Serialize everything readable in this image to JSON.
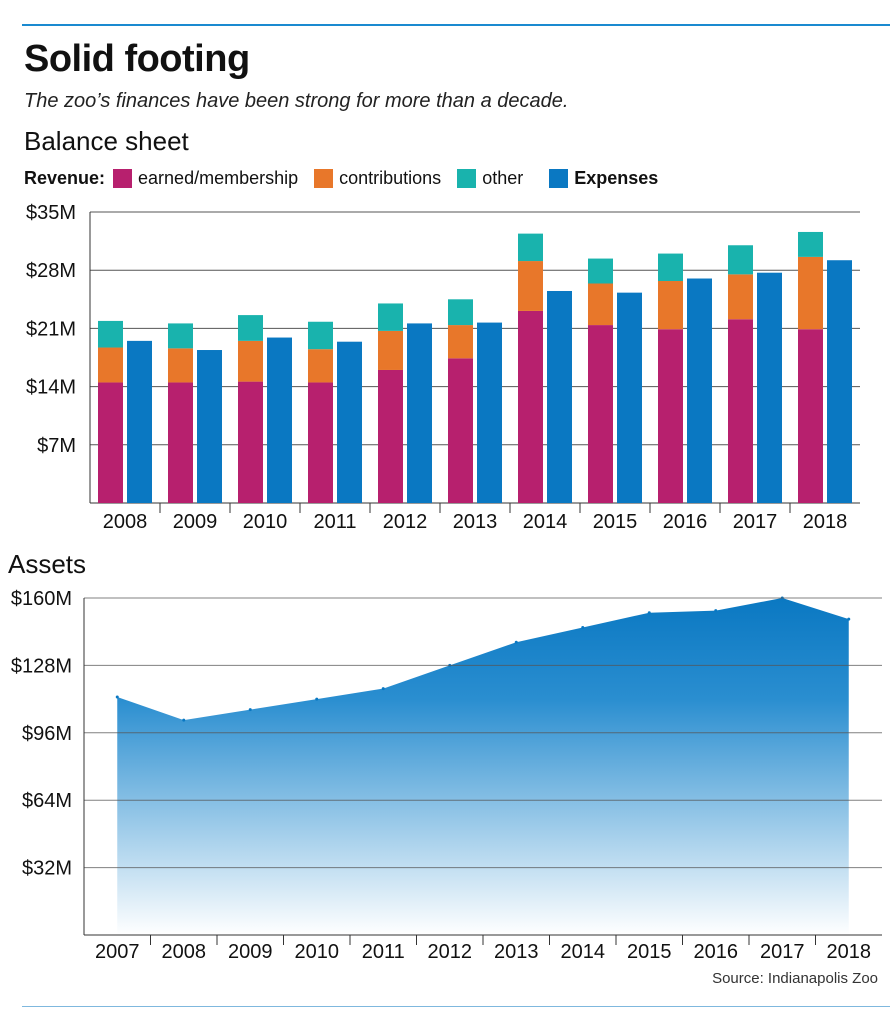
{
  "title": "Solid footing",
  "subtitle": "The zoo’s finances have been strong for more than a decade.",
  "source": "Source: Indianapolis Zoo",
  "colors": {
    "earned": "#b7206e",
    "contributions": "#e8772a",
    "other": "#19b3ad",
    "expenses": "#0a78c2",
    "rule": "#1a8ad0"
  },
  "chart_data": [
    {
      "type": "bar",
      "title": "Balance sheet",
      "legend_title": "Revenue:",
      "legend_placement": "top",
      "grid": true,
      "ylim": [
        0,
        35
      ],
      "y_ticks": [
        7,
        14,
        21,
        28,
        35
      ],
      "y_tick_labels": [
        "$7M",
        "$14M",
        "$21M",
        "$28M",
        "$35M"
      ],
      "categories": [
        "2008",
        "2009",
        "2010",
        "2011",
        "2012",
        "2013",
        "2014",
        "2015",
        "2016",
        "2017",
        "2018"
      ],
      "series": [
        {
          "name": "earned/membership",
          "stack": "revenue",
          "values": [
            14.5,
            14.5,
            14.6,
            14.5,
            16.0,
            17.4,
            23.1,
            21.4,
            20.9,
            22.1,
            20.9
          ]
        },
        {
          "name": "contributions",
          "stack": "revenue",
          "values": [
            4.2,
            4.1,
            4.9,
            4.0,
            4.7,
            4.0,
            6.0,
            5.0,
            5.8,
            5.4,
            8.7
          ]
        },
        {
          "name": "other",
          "stack": "revenue",
          "values": [
            3.2,
            3.0,
            3.1,
            3.3,
            3.3,
            3.1,
            3.3,
            3.0,
            3.3,
            3.5,
            3.0
          ]
        },
        {
          "name": "Expenses",
          "stack": "expenses",
          "values": [
            19.5,
            18.4,
            19.9,
            19.4,
            21.6,
            21.7,
            25.5,
            25.3,
            27.0,
            27.7,
            29.2
          ]
        }
      ]
    },
    {
      "type": "area",
      "title": "Assets",
      "grid": true,
      "ylim": [
        0,
        160
      ],
      "y_ticks": [
        32,
        64,
        96,
        128,
        160
      ],
      "y_tick_labels": [
        "$32M",
        "$64M",
        "$96M",
        "$128M",
        "$160M"
      ],
      "x": [
        "2007",
        "2008",
        "2009",
        "2010",
        "2011",
        "2012",
        "2013",
        "2014",
        "2015",
        "2016",
        "2017",
        "2018"
      ],
      "series": [
        {
          "values": [
            113,
            102,
            107,
            112,
            117,
            128,
            139,
            146,
            153,
            154,
            160,
            150
          ]
        }
      ]
    }
  ]
}
